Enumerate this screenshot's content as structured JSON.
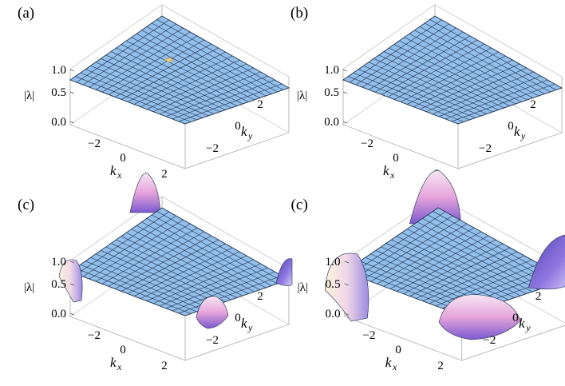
{
  "figure": {
    "panels": [
      {
        "label": "(a)",
        "bumps": "none"
      },
      {
        "label": "(b)",
        "bumps": "none"
      },
      {
        "label": "(c)",
        "bumps": "small"
      },
      {
        "label": "(c)",
        "bumps": "large"
      }
    ],
    "vertical_label": "|λ|",
    "kx_label": "k",
    "kx_sub": "x",
    "ky_label": "k",
    "ky_sub": "y",
    "z_ticks": [
      "1.0",
      "0.5",
      "0.0"
    ],
    "kx_ticks": [
      "−2",
      "0",
      "2"
    ],
    "ky_ticks": [
      "2",
      "0",
      "−2"
    ]
  },
  "chart_data": [
    {
      "type": "surface3d",
      "label": "(a)",
      "x_label": "k_x",
      "y_label": "k_y",
      "z_label": "|λ|",
      "xlim": [
        -3.14,
        3.14
      ],
      "ylim": [
        -3.14,
        3.14
      ],
      "zlim": [
        0,
        1
      ],
      "surface": "flat plane at |λ| ≈ 0.75 with a tiny defect near center",
      "color": "#93bfec"
    },
    {
      "type": "surface3d",
      "label": "(b)",
      "x_label": "k_x",
      "y_label": "k_y",
      "z_label": "|λ|",
      "xlim": [
        -3.14,
        3.14
      ],
      "ylim": [
        -3.14,
        3.14
      ],
      "zlim": [
        0,
        1
      ],
      "surface": "flat plane at |λ| ≈ 0.75",
      "color": "#93bfec"
    },
    {
      "type": "surface3d",
      "label": "(c)",
      "x_label": "k_x",
      "y_label": "k_y",
      "z_label": "|λ|",
      "xlim": [
        -3.14,
        3.14
      ],
      "ylim": [
        -3.14,
        3.14
      ],
      "zlim": [
        0,
        1
      ],
      "surface": "flat plane at |λ| ≈ 0.75 with small peaks at the four corners",
      "color": "#93bfec"
    },
    {
      "type": "surface3d",
      "label": "(c)",
      "x_label": "k_x",
      "y_label": "k_y",
      "z_label": "|λ|",
      "xlim": [
        -3.14,
        3.14
      ],
      "ylim": [
        -3.14,
        3.14
      ],
      "zlim": [
        0,
        1
      ],
      "surface": "flat plane at |λ| ≈ 0.75 with large dome-shaped peaks at the four corners",
      "color": "#93bfec"
    }
  ],
  "colors": {
    "surface": "#93bfec",
    "mesh": "#1f2f48",
    "box": "#b3b3b3",
    "bump_light": "#f3dcef",
    "bump_mid": "#e29ad4",
    "bump_dark": "#6a56c8"
  }
}
